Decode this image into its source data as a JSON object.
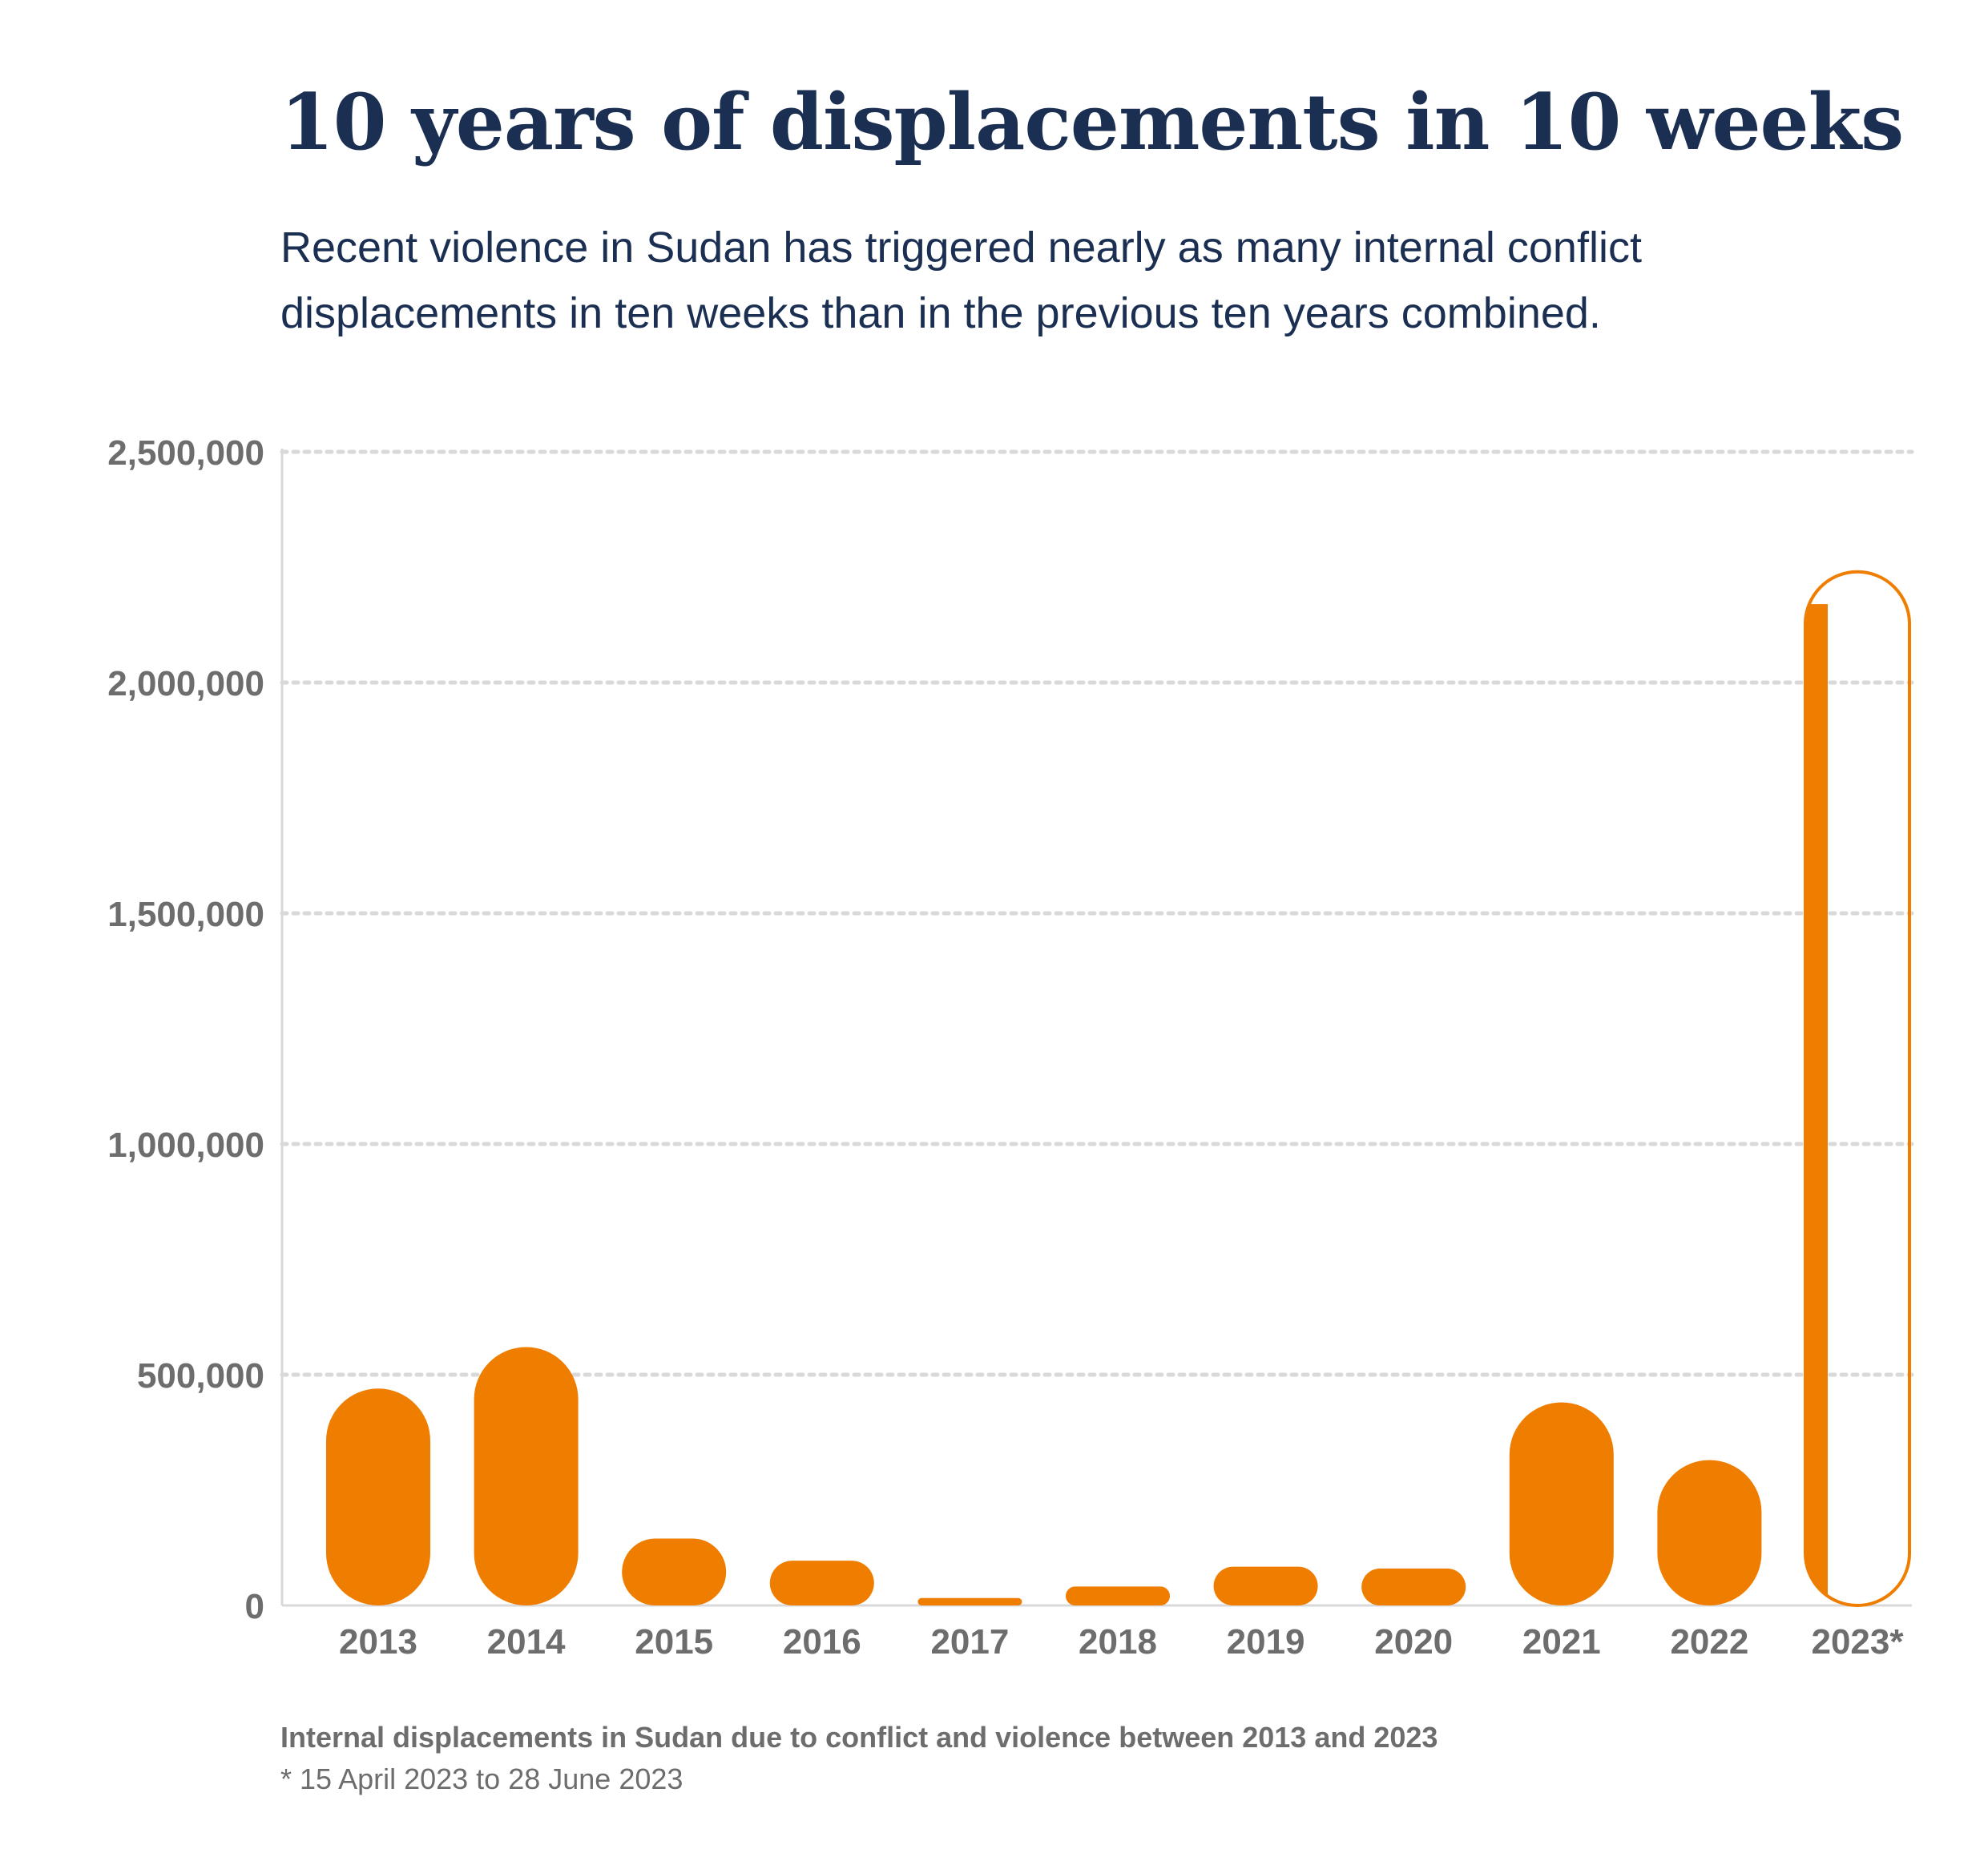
{
  "title": "10 years of displacements in 10 weeks",
  "subtitle": "Recent violence in Sudan has triggered nearly as many internal conflict displacements in ten weeks than in the previous ten years combined.",
  "caption": "Internal displacements in Sudan due to conflict and violence between 2013 and 2023",
  "footnote": "* 15 April 2023 to 28 June 2023",
  "colors": {
    "bar": "#ef7d00",
    "grid": "#d9d9d9",
    "axis_text": "#6d6d6d",
    "title": "#1b2f52"
  },
  "chart_data": {
    "type": "bar",
    "categories": [
      "2013",
      "2014",
      "2015",
      "2016",
      "2017",
      "2018",
      "2019",
      "2020",
      "2021",
      "2022",
      "2023*"
    ],
    "values": [
      470000,
      560000,
      145000,
      97000,
      16000,
      41000,
      84000,
      80000,
      440000,
      315000,
      2240000
    ],
    "filled_portion_2023": 2170000,
    "yticks": [
      "0",
      "500,000",
      "1,000,000",
      "1,500,000",
      "2,000,000",
      "2,500,000"
    ],
    "ytick_values": [
      0,
      500000,
      1000000,
      1500000,
      2000000,
      2500000
    ],
    "ylim": [
      0,
      2500000
    ],
    "grid": "horizontal dotted",
    "xlabel": "",
    "ylabel": ""
  }
}
